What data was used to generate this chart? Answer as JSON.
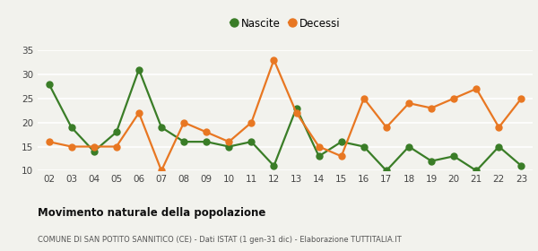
{
  "years": [
    "02",
    "03",
    "04",
    "05",
    "06",
    "07",
    "08",
    "09",
    "10",
    "11",
    "12",
    "13",
    "14",
    "15",
    "16",
    "17",
    "18",
    "19",
    "20",
    "21",
    "22",
    "23"
  ],
  "nascite": [
    28,
    19,
    14,
    18,
    31,
    19,
    16,
    16,
    15,
    16,
    11,
    23,
    13,
    16,
    15,
    10,
    15,
    12,
    13,
    10,
    15,
    11
  ],
  "decessi": [
    16,
    15,
    15,
    15,
    22,
    10,
    20,
    18,
    16,
    20,
    33,
    22,
    15,
    13,
    25,
    19,
    24,
    23,
    25,
    27,
    19,
    25
  ],
  "nascite_color": "#3a7d27",
  "decessi_color": "#e87722",
  "bg_color": "#f2f2ed",
  "grid_color": "#ffffff",
  "ylim": [
    10,
    35
  ],
  "yticks": [
    10,
    15,
    20,
    25,
    30,
    35
  ],
  "title": "Movimento naturale della popolazione",
  "subtitle": "COMUNE DI SAN POTITO SANNITICO (CE) - Dati ISTAT (1 gen-31 dic) - Elaborazione TUTTITALIA.IT",
  "legend_nascite": "Nascite",
  "legend_decessi": "Decessi",
  "marker_size": 5,
  "line_width": 1.6
}
